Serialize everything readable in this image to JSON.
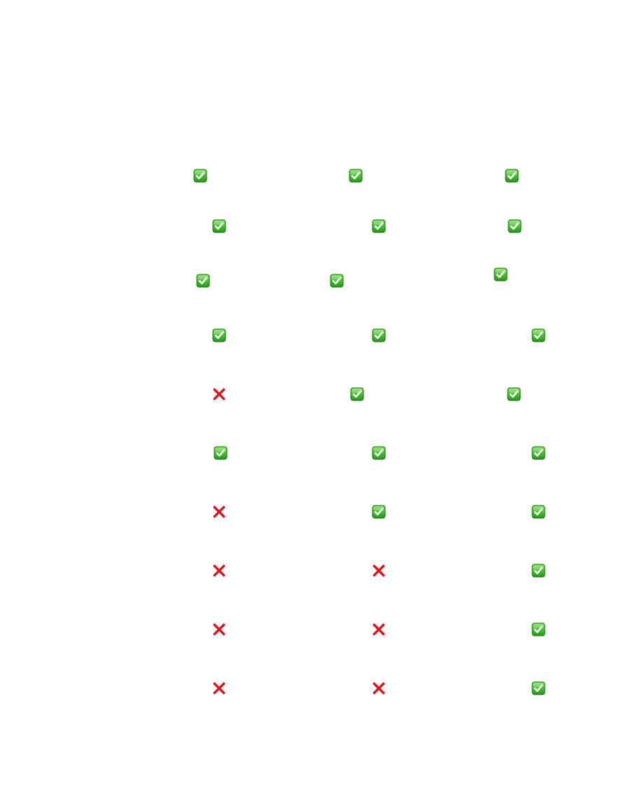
{
  "colors": {
    "check_green_top": "#7be05a",
    "check_green_bottom": "#1f9a12",
    "check_border": "#17720e",
    "cross_red": "#e0101a"
  },
  "rows": [
    [
      "check-icon",
      "check-icon",
      "check-icon"
    ],
    [
      "check-icon",
      "check-icon",
      "check-icon"
    ],
    [
      "check-icon",
      "check-icon",
      "check-icon"
    ],
    [
      "check-icon",
      "check-icon",
      "check-icon"
    ],
    [
      "cross-icon",
      "check-icon",
      "check-icon"
    ],
    [
      "check-icon",
      "check-icon",
      "check-icon"
    ],
    [
      "cross-icon",
      "check-icon",
      "check-icon"
    ],
    [
      "cross-icon",
      "cross-icon",
      "check-icon"
    ],
    [
      "cross-icon",
      "cross-icon",
      "check-icon"
    ],
    [
      "cross-icon",
      "cross-icon",
      "check-icon"
    ]
  ]
}
